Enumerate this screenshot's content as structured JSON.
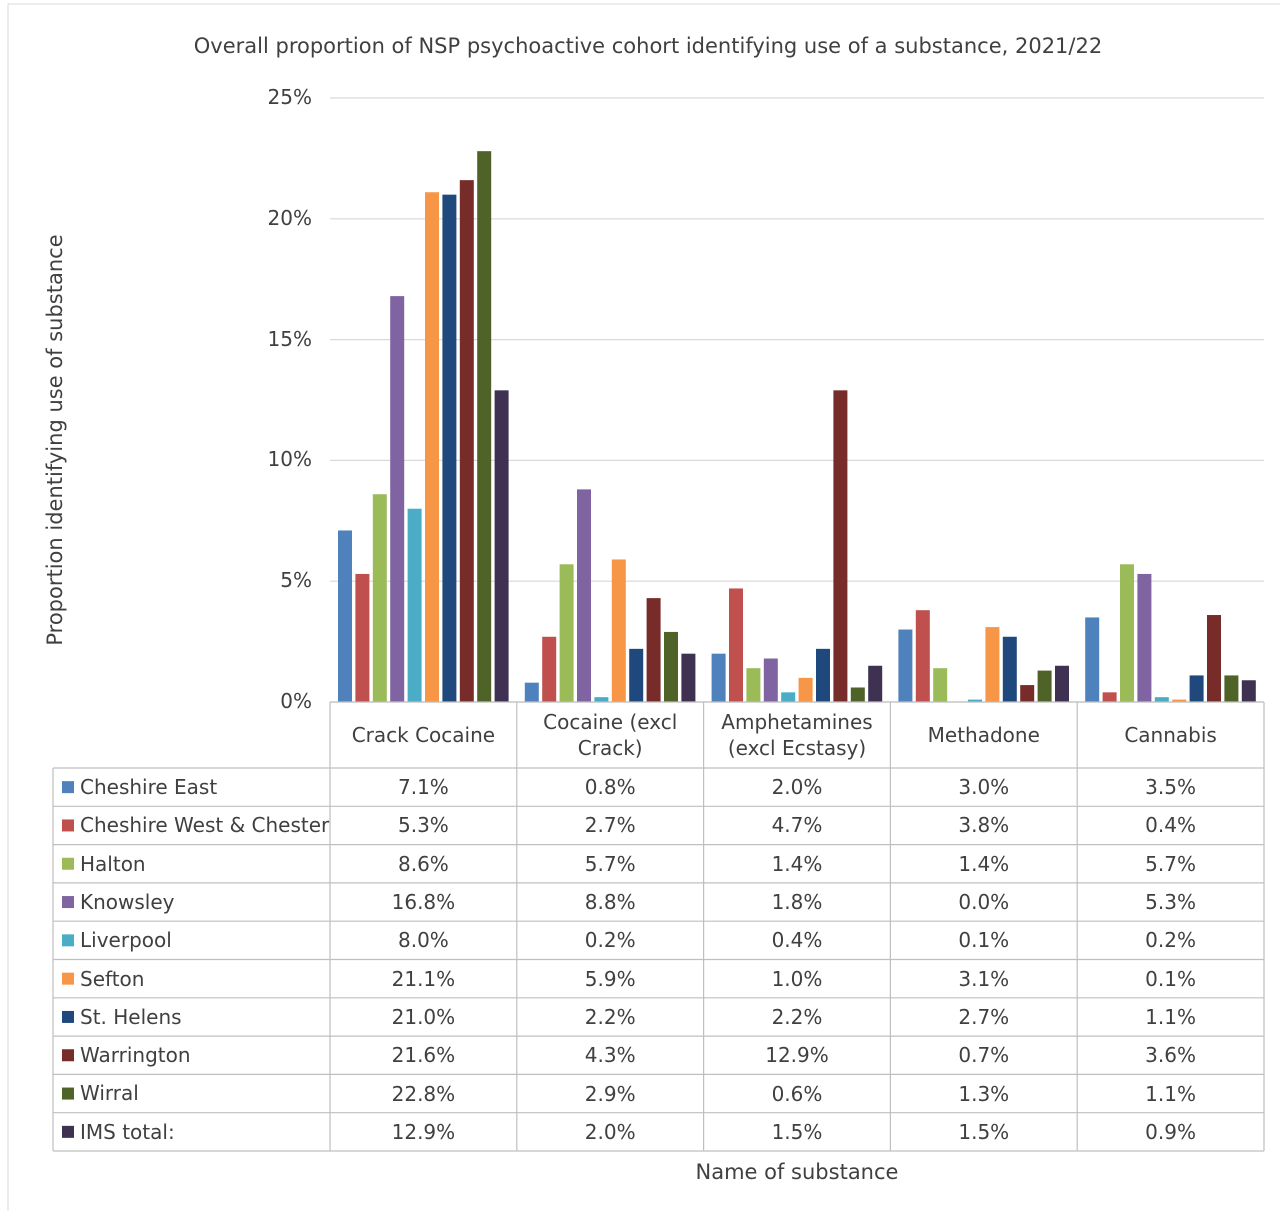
{
  "chart_data": {
    "type": "bar",
    "title": "Overall proportion of NSP psychoactive cohort identifying use of a substance, 2021/22",
    "x_label": "Name of substance",
    "y_label": "Proportion identifying use of substance",
    "categories": [
      "Crack Cocaine",
      "Cocaine (excl Crack)",
      "Amphetamines (excl Ecstasy)",
      "Methadone",
      "Cannabis"
    ],
    "ylim": [
      0,
      25
    ],
    "yticks": [
      {
        "value": 0,
        "label": "0%"
      },
      {
        "value": 5,
        "label": "5%"
      },
      {
        "value": 10,
        "label": "10%"
      },
      {
        "value": 15,
        "label": "15%"
      },
      {
        "value": 20,
        "label": "20%"
      },
      {
        "value": 25,
        "label": "25%"
      }
    ],
    "grid": true,
    "series": [
      {
        "name": "Cheshire East",
        "color": "#4f81bd",
        "values": [
          7.1,
          0.8,
          2.0,
          3.0,
          3.5
        ],
        "value_labels": [
          "7.1%",
          "0.8%",
          "2.0%",
          "3.0%",
          "3.5%"
        ]
      },
      {
        "name": "Cheshire West & Chester",
        "color": "#c0504d",
        "values": [
          5.3,
          2.7,
          4.7,
          3.8,
          0.4
        ],
        "value_labels": [
          "5.3%",
          "2.7%",
          "4.7%",
          "3.8%",
          "0.4%"
        ]
      },
      {
        "name": "Halton",
        "color": "#9bbb59",
        "values": [
          8.6,
          5.7,
          1.4,
          1.4,
          5.7
        ],
        "value_labels": [
          "8.6%",
          "5.7%",
          "1.4%",
          "1.4%",
          "5.7%"
        ]
      },
      {
        "name": "Knowsley",
        "color": "#8064a2",
        "values": [
          16.8,
          8.8,
          1.8,
          0.0,
          5.3
        ],
        "value_labels": [
          "16.8%",
          "8.8%",
          "1.8%",
          "0.0%",
          "5.3%"
        ]
      },
      {
        "name": "Liverpool",
        "color": "#4bacc6",
        "values": [
          8.0,
          0.2,
          0.4,
          0.1,
          0.2
        ],
        "value_labels": [
          "8.0%",
          "0.2%",
          "0.4%",
          "0.1%",
          "0.2%"
        ]
      },
      {
        "name": "Sefton",
        "color": "#f79646",
        "values": [
          21.1,
          5.9,
          1.0,
          3.1,
          0.1
        ],
        "value_labels": [
          "21.1%",
          "5.9%",
          "1.0%",
          "3.1%",
          "0.1%"
        ]
      },
      {
        "name": "St. Helens",
        "color": "#1f497d",
        "values": [
          21.0,
          2.2,
          2.2,
          2.7,
          1.1
        ],
        "value_labels": [
          "21.0%",
          "2.2%",
          "2.2%",
          "2.7%",
          "1.1%"
        ]
      },
      {
        "name": "Warrington",
        "color": "#772c2a",
        "values": [
          21.6,
          4.3,
          12.9,
          0.7,
          3.6
        ],
        "value_labels": [
          "21.6%",
          "4.3%",
          "12.9%",
          "0.7%",
          "3.6%"
        ]
      },
      {
        "name": "Wirral",
        "color": "#4f6228",
        "values": [
          22.8,
          2.9,
          0.6,
          1.3,
          1.1
        ],
        "value_labels": [
          "22.8%",
          "2.9%",
          "0.6%",
          "1.3%",
          "1.1%"
        ]
      },
      {
        "name": "IMS total:",
        "color": "#3f3151",
        "values": [
          12.9,
          2.0,
          1.5,
          1.5,
          0.9
        ],
        "value_labels": [
          "12.9%",
          "2.0%",
          "1.5%",
          "1.5%",
          "0.9%"
        ]
      }
    ]
  }
}
